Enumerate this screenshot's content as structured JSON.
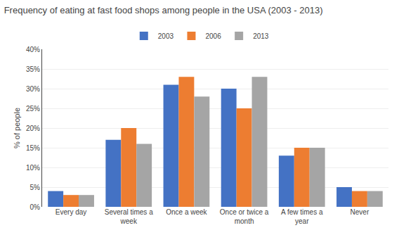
{
  "chart_data": {
    "type": "bar",
    "title": "Frequency of eating at fast food shops among people in the USA (2003 - 2013)",
    "categories": [
      "Every day",
      "Several times a\nweek",
      "Once a week",
      "Once or twice a\nmonth",
      "A few times a\nyear",
      "Never"
    ],
    "series": [
      {
        "name": "2003",
        "color": "#4472C4",
        "values": [
          4,
          17,
          31,
          30,
          13,
          5
        ]
      },
      {
        "name": "2006",
        "color": "#ED7D31",
        "values": [
          3,
          20,
          33,
          25,
          15,
          4
        ]
      },
      {
        "name": "2013",
        "color": "#A5A5A5",
        "values": [
          3,
          16,
          28,
          33,
          15,
          4
        ]
      }
    ],
    "ylabel": "% of people",
    "ylim": [
      0,
      40
    ],
    "yticks": [
      {
        "value": 0,
        "label": "0%"
      },
      {
        "value": 5,
        "label": "5%"
      },
      {
        "value": 10,
        "label": "10%"
      },
      {
        "value": 15,
        "label": "15%"
      },
      {
        "value": 20,
        "label": "20%"
      },
      {
        "value": 25,
        "label": "25%"
      },
      {
        "value": 30,
        "label": "30%"
      },
      {
        "value": 35,
        "label": "35%"
      },
      {
        "value": 40,
        "label": "40%"
      }
    ],
    "grid": true,
    "legend": "top"
  }
}
